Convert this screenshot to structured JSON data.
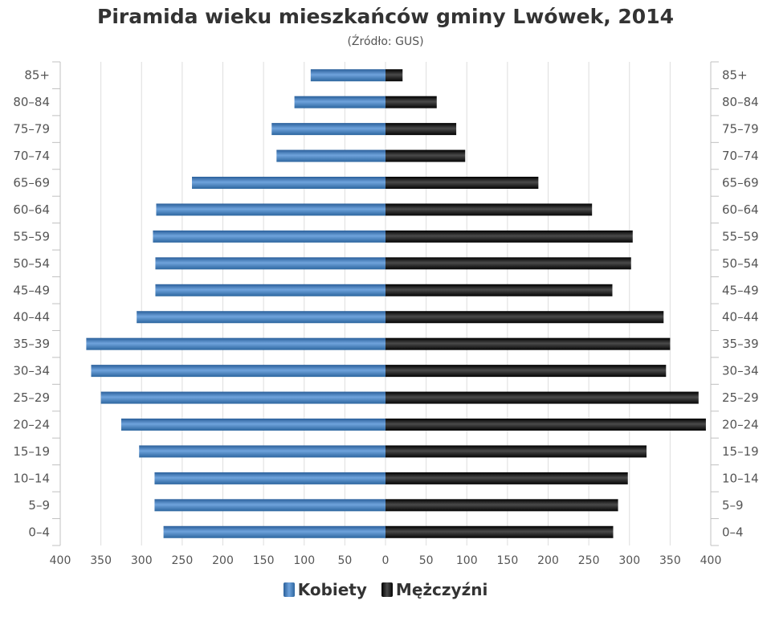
{
  "chart_data": {
    "type": "bar",
    "orientation": "horizontal",
    "title": "Piramida wieku mieszkańców gminy Lwówek, 2014",
    "subtitle": "(Źródło: GUS)",
    "categories": [
      "85+",
      "80-84",
      "75-79",
      "70-74",
      "65-69",
      "60-64",
      "55-59",
      "50-54",
      "45-49",
      "40-44",
      "35-39",
      "30-34",
      "25-29",
      "20-24",
      "15-19",
      "10-14",
      "5-9",
      "0-4"
    ],
    "series": [
      {
        "name": "Kobiety",
        "color": "#3a78b8",
        "values": [
          92,
          112,
          140,
          134,
          238,
          282,
          286,
          283,
          283,
          306,
          368,
          362,
          350,
          325,
          303,
          284,
          284,
          273
        ]
      },
      {
        "name": "Mężczyźni",
        "color": "#1a1a1a",
        "values": [
          21,
          63,
          87,
          98,
          188,
          254,
          304,
          302,
          279,
          342,
          350,
          345,
          385,
          394,
          321,
          298,
          286,
          280
        ]
      }
    ],
    "x_ticks": [
      "400",
      "350",
      "300",
      "250",
      "200",
      "150",
      "100",
      "50",
      "0",
      "50",
      "100",
      "150",
      "200",
      "250",
      "300",
      "350",
      "400"
    ],
    "xlim": [
      -400,
      400
    ],
    "grid": true,
    "legend_position": "bottom"
  }
}
